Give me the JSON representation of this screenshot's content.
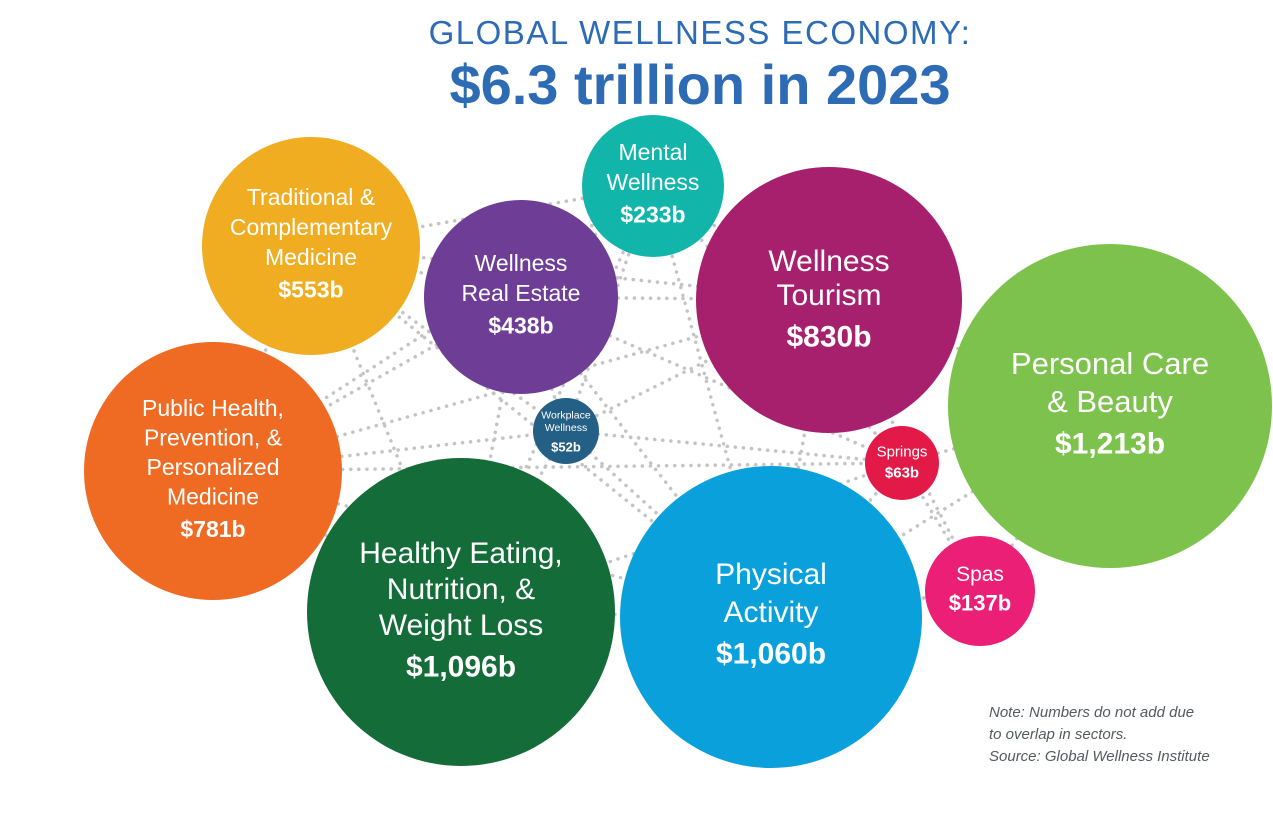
{
  "title": {
    "line1": "GLOBAL WELLNESS ECONOMY:",
    "line2": "$6.3 trillion in 2023"
  },
  "note": {
    "line1": "Note: Numbers do not add due",
    "line2": "to overlap in sectors.",
    "line3": "Source: Global Wellness Institute"
  },
  "chart_data": {
    "type": "bubble",
    "unit": "billion USD",
    "total_label": "$6.3 trillion in 2023",
    "series": [
      {
        "name": "Traditional & Complementary Medicine",
        "label_lines": [
          "Traditional &",
          "Complementary",
          "Medicine"
        ],
        "value": 553,
        "value_label": "$553b",
        "color": "#f0ad21"
      },
      {
        "name": "Wellness Real Estate",
        "label_lines": [
          "Wellness",
          "Real Estate"
        ],
        "value": 438,
        "value_label": "$438b",
        "color": "#6e3d96"
      },
      {
        "name": "Mental Wellness",
        "label_lines": [
          "Mental",
          "Wellness"
        ],
        "value": 233,
        "value_label": "$233b",
        "color": "#12b5aa"
      },
      {
        "name": "Wellness Tourism",
        "label_lines": [
          "Wellness",
          "Tourism"
        ],
        "value": 830,
        "value_label": "$830b",
        "color": "#a6206e"
      },
      {
        "name": "Personal Care & Beauty",
        "label_lines": [
          "Personal Care",
          "& Beauty"
        ],
        "value": 1213,
        "value_label": "$1,213b",
        "color": "#7dc24d"
      },
      {
        "name": "Public Health, Prevention, & Personalized Medicine",
        "label_lines": [
          "Public Health,",
          "Prevention, &",
          "Personalized",
          "Medicine"
        ],
        "value": 781,
        "value_label": "$781b",
        "color": "#ef6b23"
      },
      {
        "name": "Workplace Wellness",
        "label_lines": [
          "Workplace",
          "Wellness"
        ],
        "value": 52,
        "value_label": "$52b",
        "color": "#245f86"
      },
      {
        "name": "Springs",
        "label_lines": [
          "Springs"
        ],
        "value": 63,
        "value_label": "$63b",
        "color": "#e31a47"
      },
      {
        "name": "Healthy Eating, Nutrition, & Weight Loss",
        "label_lines": [
          "Healthy Eating,",
          "Nutrition, &",
          "Weight Loss"
        ],
        "value": 1096,
        "value_label": "$1,096b",
        "color": "#146c38"
      },
      {
        "name": "Physical Activity",
        "label_lines": [
          "Physical",
          "Activity"
        ],
        "value": 1060,
        "value_label": "$1,060b",
        "color": "#0aa0dc"
      },
      {
        "name": "Spas",
        "label_lines": [
          "Spas"
        ],
        "value": 137,
        "value_label": "$137b",
        "color": "#ea1f75"
      }
    ]
  }
}
